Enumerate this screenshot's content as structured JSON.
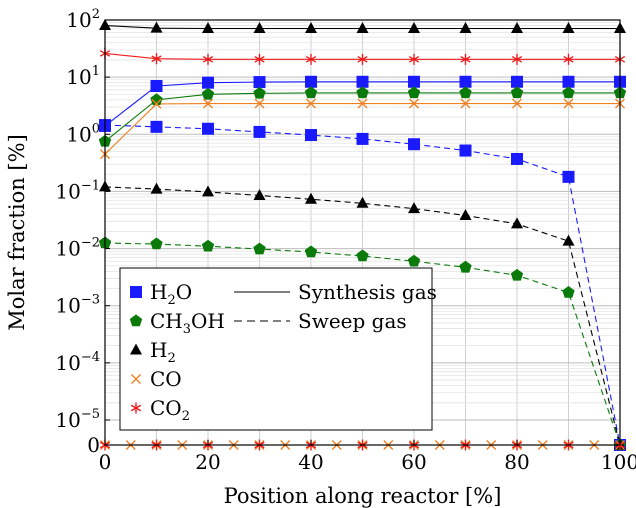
{
  "chart_data": {
    "type": "line",
    "xlabel": "Position along reactor [%]",
    "ylabel": "Molar fraction [%]",
    "x_scale": "linear",
    "y_scale": "log",
    "xlim": [
      0,
      100
    ],
    "ylim_decades": [
      -5,
      2
    ],
    "y_bottom_label": "0",
    "grid": true,
    "x_ticks": [
      0,
      20,
      40,
      60,
      80,
      100
    ],
    "y_ticks": [
      {
        "base": "10",
        "exp": "2",
        "value": 100
      },
      {
        "base": "10",
        "exp": "1",
        "value": 10
      },
      {
        "base": "10",
        "exp": "0",
        "value": 1
      },
      {
        "base": "10",
        "exp": "−1",
        "value": 0.1
      },
      {
        "base": "10",
        "exp": "−2",
        "value": 0.01
      },
      {
        "base": "10",
        "exp": "−3",
        "value": 0.001
      },
      {
        "base": "10",
        "exp": "−4",
        "value": 0.0001
      },
      {
        "base": "10",
        "exp": "−5",
        "value": 1e-05
      },
      {
        "base": "0",
        "exp": "",
        "value": 0
      }
    ],
    "legend": {
      "placement": "lower-left",
      "species": [
        {
          "main": "H",
          "sub": "2",
          "tail": "O",
          "marker": "square",
          "color": "#1a1aff"
        },
        {
          "main": "CH",
          "sub": "3",
          "tail": "OH",
          "marker": "pentagon",
          "color": "#0a7a0a"
        },
        {
          "main": "H",
          "sub": "2",
          "tail": "",
          "marker": "triangle",
          "color": "#000000"
        },
        {
          "main": "CO",
          "sub": "",
          "tail": "",
          "marker": "x",
          "color": "#f08020"
        },
        {
          "main": "CO",
          "sub": "2",
          "tail": "",
          "marker": "star",
          "color": "#ee1c1c"
        }
      ],
      "line_styles": [
        {
          "label": "Synthesis gas",
          "style": "solid"
        },
        {
          "label": "Sweep gas",
          "style": "dashed"
        }
      ]
    },
    "series": [
      {
        "species": "H2O",
        "gas": "synthesis",
        "color": "#1a1aff",
        "marker": "square",
        "x": [
          0,
          10,
          20,
          30,
          40,
          50,
          60,
          70,
          80,
          90,
          100
        ],
        "y": [
          1.4,
          7.0,
          8.0,
          8.2,
          8.3,
          8.3,
          8.3,
          8.3,
          8.3,
          8.3,
          8.3
        ]
      },
      {
        "species": "CH3OH",
        "gas": "synthesis",
        "color": "#0a7a0a",
        "marker": "pentagon",
        "x": [
          0,
          10,
          20,
          30,
          40,
          50,
          60,
          70,
          80,
          90,
          100
        ],
        "y": [
          0.75,
          4.0,
          5.0,
          5.2,
          5.3,
          5.3,
          5.3,
          5.3,
          5.3,
          5.3,
          5.3
        ]
      },
      {
        "species": "H2",
        "gas": "synthesis",
        "color": "#000000",
        "marker": "triangle",
        "x": [
          0,
          10,
          20,
          30,
          40,
          50,
          60,
          70,
          80,
          90,
          100
        ],
        "y": [
          80,
          72,
          71,
          71,
          71,
          71,
          71,
          71,
          71,
          71,
          71
        ]
      },
      {
        "species": "CO",
        "gas": "synthesis",
        "color": "#f08020",
        "marker": "x",
        "x": [
          0,
          10,
          20,
          30,
          40,
          50,
          60,
          70,
          80,
          90,
          100
        ],
        "y": [
          0.45,
          3.4,
          3.45,
          3.45,
          3.45,
          3.45,
          3.45,
          3.45,
          3.45,
          3.45,
          3.45
        ]
      },
      {
        "species": "CO2",
        "gas": "synthesis",
        "color": "#ee1c1c",
        "marker": "star",
        "x": [
          0,
          10,
          20,
          30,
          40,
          50,
          60,
          70,
          80,
          90,
          100
        ],
        "y": [
          26,
          21,
          20.5,
          20.5,
          20.5,
          20.5,
          20.5,
          20.5,
          20.5,
          20.5,
          20.5
        ]
      },
      {
        "species": "H2O",
        "gas": "sweep",
        "color": "#1a1aff",
        "marker": "square",
        "x": [
          0,
          10,
          20,
          30,
          40,
          50,
          60,
          70,
          80,
          90,
          100
        ],
        "y": [
          1.45,
          1.35,
          1.25,
          1.1,
          0.97,
          0.83,
          0.67,
          0.52,
          0.37,
          0.18,
          0
        ]
      },
      {
        "species": "CH3OH",
        "gas": "sweep",
        "color": "#0a7a0a",
        "marker": "pentagon",
        "x": [
          0,
          10,
          20,
          30,
          40,
          50,
          60,
          70,
          80,
          90,
          100
        ],
        "y": [
          0.0125,
          0.012,
          0.011,
          0.0098,
          0.0087,
          0.0074,
          0.006,
          0.0047,
          0.0034,
          0.0017,
          0
        ]
      },
      {
        "species": "H2",
        "gas": "sweep",
        "color": "#000000",
        "marker": "triangle",
        "x": [
          0,
          10,
          20,
          30,
          40,
          50,
          60,
          70,
          80,
          90,
          100
        ],
        "y": [
          0.12,
          0.11,
          0.098,
          0.085,
          0.073,
          0.062,
          0.05,
          0.038,
          0.027,
          0.0135,
          0
        ]
      },
      {
        "species": "CO",
        "gas": "sweep",
        "color": "#f08020",
        "marker": "x",
        "x": [
          0,
          5,
          10,
          15,
          20,
          25,
          30,
          35,
          40,
          45,
          50,
          55,
          60,
          65,
          70,
          75,
          80,
          85,
          90,
          95,
          100
        ],
        "y": [
          0,
          0,
          0,
          0,
          0,
          0,
          0,
          0,
          0,
          0,
          0,
          0,
          0,
          0,
          0,
          0,
          0,
          0,
          0,
          0,
          0
        ]
      },
      {
        "species": "CO2",
        "gas": "sweep",
        "color": "#ee1c1c",
        "marker": "star",
        "x": [
          0,
          10,
          20,
          30,
          40,
          50,
          60,
          70,
          80,
          90,
          100
        ],
        "y": [
          0,
          0,
          0,
          0,
          0,
          0,
          0,
          0,
          0,
          0,
          0
        ]
      }
    ]
  }
}
